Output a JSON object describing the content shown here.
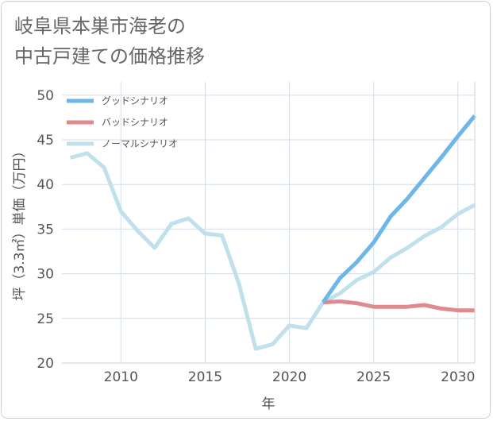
{
  "title_lines": [
    "岐阜県本巣市海老の",
    "中古戸建ての価格推移"
  ],
  "chart_data": {
    "type": "line",
    "title": "岐阜県本巣市海老の中古戸建ての価格推移",
    "xlabel": "年",
    "ylabel": "坪（3.3㎡）単価（万円）",
    "xlim": [
      2006.5,
      2031
    ],
    "ylim": [
      20,
      51.5
    ],
    "xticks": [
      2010,
      2015,
      2020,
      2025,
      2030
    ],
    "yticks": [
      20,
      25,
      30,
      35,
      40,
      45,
      50
    ],
    "grid": true,
    "legend_position": "top-left",
    "series": [
      {
        "name": "グッドシナリオ",
        "color": "#6cb6e8",
        "x": [
          2022,
          2023,
          2024,
          2025,
          2026,
          2027,
          2028,
          2029,
          2030,
          2031
        ],
        "y": [
          26.8,
          29.5,
          31.3,
          33.5,
          36.4,
          38.4,
          40.7,
          43.0,
          45.4,
          47.7
        ]
      },
      {
        "name": "バッドシナリオ",
        "color": "#de8a8e",
        "x": [
          2022,
          2023,
          2024,
          2025,
          2026,
          2027,
          2028,
          2029,
          2030,
          2031
        ],
        "y": [
          26.8,
          26.9,
          26.7,
          26.3,
          26.3,
          26.3,
          26.5,
          26.1,
          25.9,
          25.9
        ]
      },
      {
        "name": "ノーマルシナリオ",
        "color": "#c0e0ec",
        "x": [
          2007,
          2008,
          2009,
          2010,
          2011,
          2012,
          2013,
          2014,
          2015,
          2016,
          2017,
          2018,
          2019,
          2020,
          2021,
          2022,
          2023,
          2024,
          2025,
          2026,
          2027,
          2028,
          2029,
          2030,
          2031
        ],
        "y": [
          43.0,
          43.5,
          41.9,
          37.0,
          34.8,
          32.9,
          35.6,
          36.2,
          34.5,
          34.3,
          28.9,
          21.6,
          22.1,
          24.2,
          23.9,
          26.8,
          27.8,
          29.3,
          30.2,
          31.8,
          32.9,
          34.2,
          35.2,
          36.7,
          37.7
        ]
      }
    ]
  }
}
